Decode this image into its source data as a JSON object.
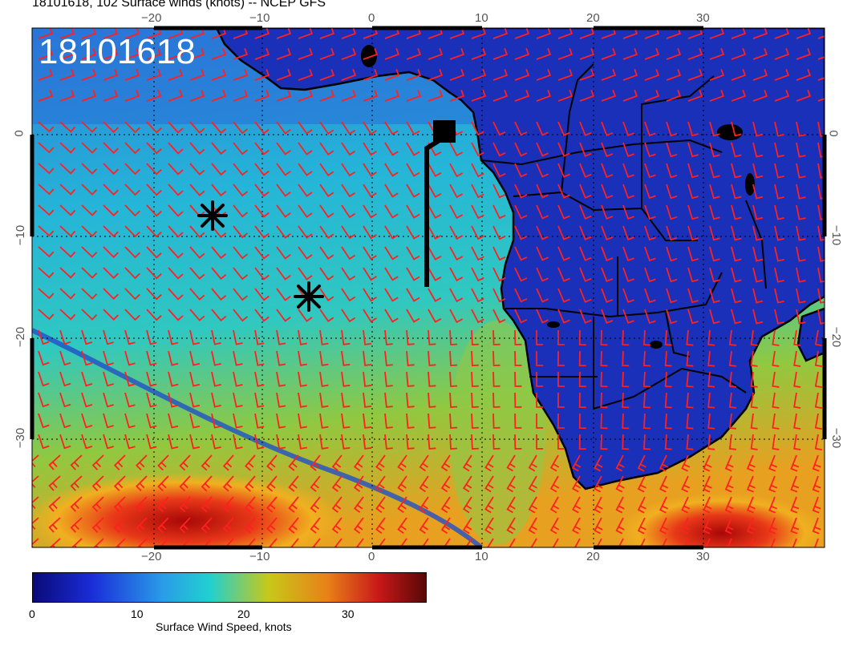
{
  "header": {
    "title": "18101618, 102 Surface winds (knots) -- NCEP GFS",
    "stamp": "18101618"
  },
  "axes": {
    "x_ticks": [
      "−20",
      "−10",
      "0",
      "10",
      "20",
      "30"
    ],
    "y_ticks": [
      "0",
      "−10",
      "−20",
      "−30"
    ]
  },
  "map": {
    "ocean_color": "#1f8fd6",
    "land_color": "#1a2db0",
    "barb_color": "#ff2020",
    "storm_markers": 2
  },
  "colorbar": {
    "label": "Surface Wind Speed, knots",
    "ticks": [
      "0",
      "10",
      "20",
      "30"
    ],
    "stops": [
      {
        "offset": 0.0,
        "color": "#0a0a78"
      },
      {
        "offset": 0.15,
        "color": "#1a2dd8"
      },
      {
        "offset": 0.33,
        "color": "#2a9ce8"
      },
      {
        "offset": 0.45,
        "color": "#20d0d0"
      },
      {
        "offset": 0.6,
        "color": "#c8c818"
      },
      {
        "offset": 0.75,
        "color": "#e88018"
      },
      {
        "offset": 0.88,
        "color": "#c81818"
      },
      {
        "offset": 1.0,
        "color": "#580808"
      }
    ]
  }
}
